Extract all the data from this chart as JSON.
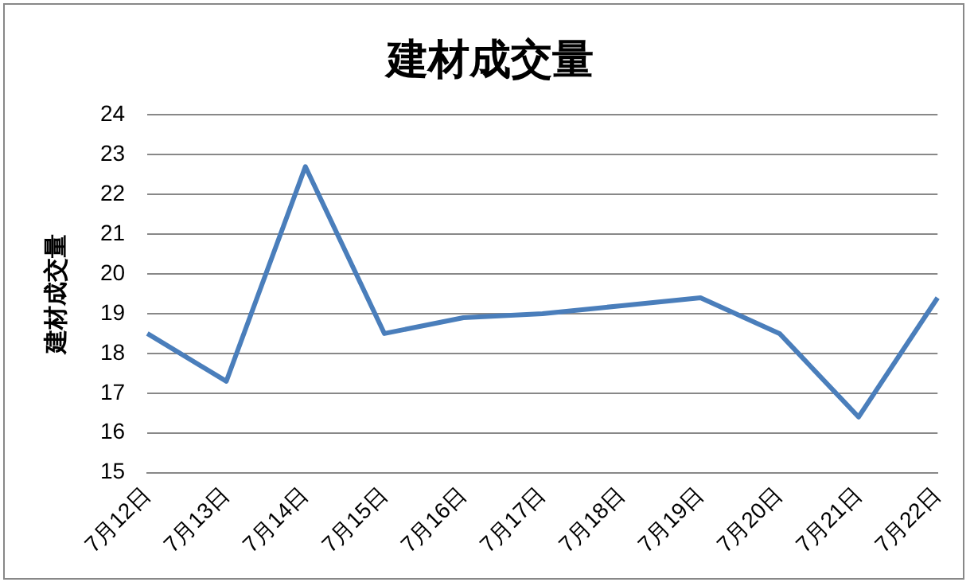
{
  "chart_data": {
    "type": "line",
    "title": "建材成交量",
    "ylabel": "建材成交量",
    "categories": [
      "7月12日",
      "7月13日",
      "7月14日",
      "7月15日",
      "7月16日",
      "7月17日",
      "7月18日",
      "7月19日",
      "7月20日",
      "7月21日",
      "7月22日"
    ],
    "series": [
      {
        "color": "#4a7ebb",
        "values": [
          18.5,
          17.3,
          22.7,
          18.5,
          18.9,
          19.0,
          19.2,
          19.4,
          18.5,
          16.4,
          19.4
        ]
      }
    ],
    "ylim": [
      15,
      24
    ],
    "yticks": [
      15,
      16,
      17,
      18,
      19,
      20,
      21,
      22,
      23,
      24
    ],
    "grid": "y",
    "legend": false,
    "marker": "none",
    "line_style": "solid"
  }
}
